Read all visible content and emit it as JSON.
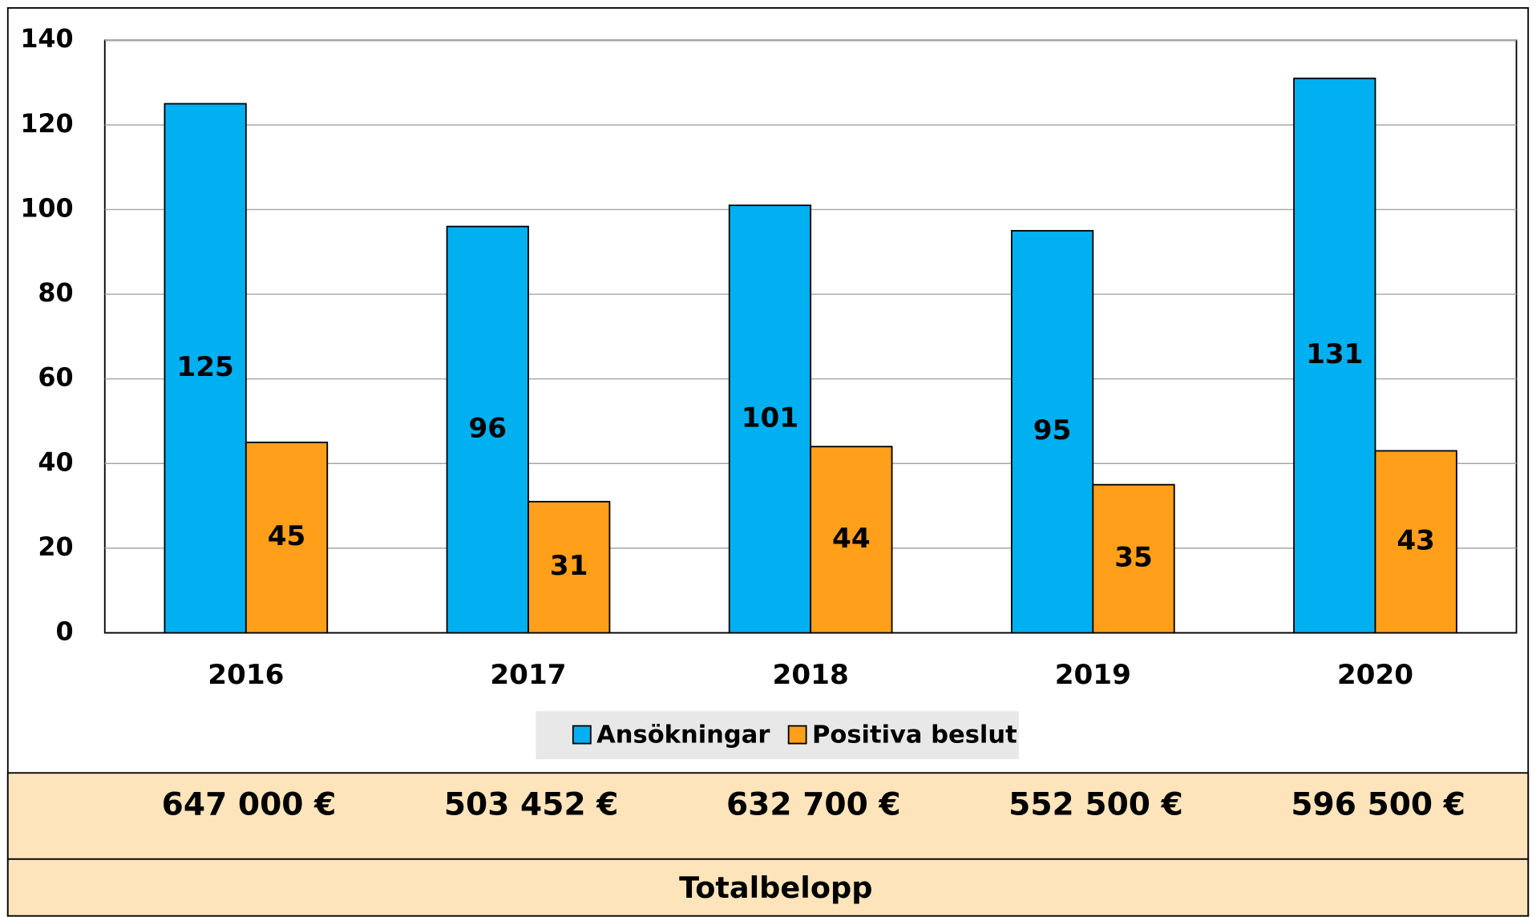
{
  "chart_data": {
    "type": "bar",
    "categories": [
      "2016",
      "2017",
      "2018",
      "2019",
      "2020"
    ],
    "series": [
      {
        "name": "Ansökningar",
        "color": "#00b0f0",
        "values": [
          125,
          96,
          101,
          95,
          131
        ]
      },
      {
        "name": "Positiva beslut",
        "color": "#ff9f1a",
        "values": [
          45,
          31,
          44,
          35,
          43
        ]
      }
    ],
    "ylim": [
      0,
      140
    ],
    "yticks": [
      0,
      20,
      40,
      60,
      80,
      100,
      120,
      140
    ],
    "grid": true,
    "legend": "bottom",
    "totals": [
      "647 000 €",
      "503 452 €",
      "632 700 €",
      "552 500 €",
      "596 500 €"
    ],
    "totals_label": "Totalbelopp"
  }
}
